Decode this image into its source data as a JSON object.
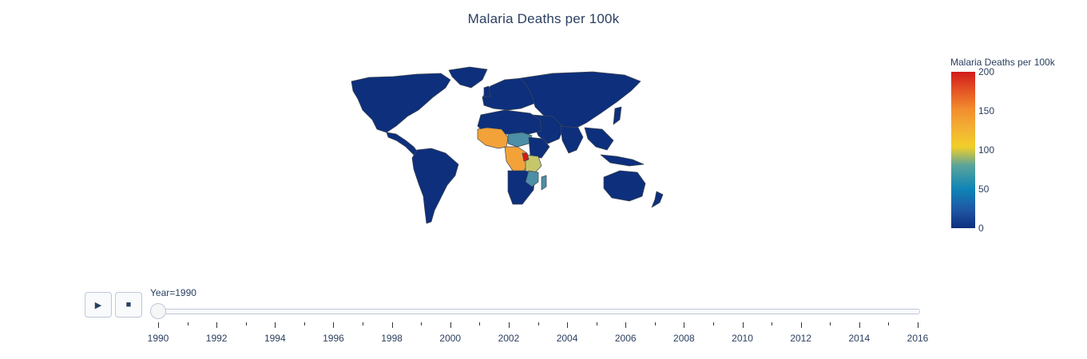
{
  "chart_data": {
    "type": "choropleth",
    "title": "Malaria Deaths per 100k",
    "colorbar": {
      "title": "Malaria Deaths per 100k",
      "range": [
        0,
        200
      ],
      "ticks": [
        "0",
        "50",
        "100",
        "150",
        "200"
      ],
      "colors": [
        "#0d2f7c",
        "#1f57a6",
        "#0f85b6",
        "#5aa39b",
        "#f1cf2a",
        "#f3b033",
        "#f28d2f",
        "#e45424",
        "#d21b1b"
      ]
    },
    "frame": {
      "label": "Year=1990",
      "year": 1990
    },
    "slider": {
      "range": [
        1990,
        2016
      ],
      "labels": [
        "1990",
        "1992",
        "1994",
        "1996",
        "1998",
        "2000",
        "2002",
        "2004",
        "2006",
        "2008",
        "2010",
        "2012",
        "2014",
        "2016"
      ],
      "current_value": 1990
    },
    "map_colors": {
      "land": "#0d2f7c",
      "border": "#3e4651",
      "high": "#f3a23a",
      "mid": "#4c8fa6",
      "very_high": "#d21b1b",
      "moderate": "#c6c76a"
    }
  },
  "controls": {
    "play_icon": "▶",
    "stop_icon": "■"
  }
}
